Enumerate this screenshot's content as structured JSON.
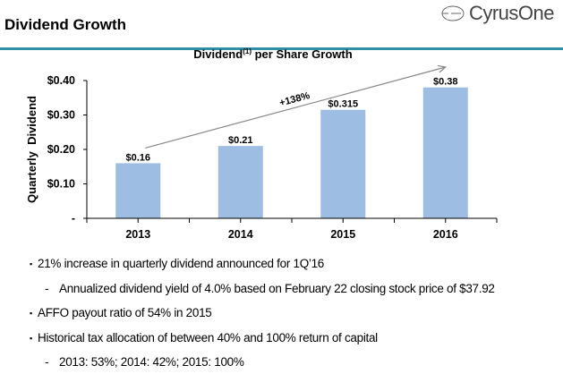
{
  "header": {
    "title": "Dividend Growth",
    "logo_text": "CyrusOne",
    "rule_color": "#2e8fa6"
  },
  "chart_data": {
    "type": "bar",
    "title": "Dividend",
    "title_superscript": "(1)",
    "title_rest": " per Share Growth",
    "ylabel": "Quarterly  Dividend",
    "xlabel": "",
    "categories": [
      "2013",
      "2014",
      "2015",
      "2016"
    ],
    "values": [
      0.16,
      0.21,
      0.315,
      0.38
    ],
    "data_labels": [
      "$0.16",
      "$0.21",
      "$0.315",
      "$0.38"
    ],
    "ylim": [
      0,
      0.4
    ],
    "yticks": [
      0,
      0.1,
      0.2,
      0.3,
      0.4
    ],
    "ytick_labels": [
      "-",
      "$0.10",
      "$0.20",
      "$0.30",
      "$0.40"
    ],
    "bar_color": "#9dbde3",
    "grid": false,
    "annotation": {
      "text": "+138%",
      "type": "arrow",
      "from": "2013",
      "to": "2016"
    }
  },
  "bullets": [
    {
      "level": 1,
      "marker": "▪",
      "text": "21% increase in quarterly dividend announced for 1Q’16"
    },
    {
      "level": 2,
      "marker": "-",
      "text": "Annualized dividend yield of 4.0% based on February 22 closing stock price of $37.92"
    },
    {
      "level": 1,
      "marker": "▪",
      "text": "AFFO payout ratio of 54% in 2015"
    },
    {
      "level": 1,
      "marker": "▪",
      "text": "Historical tax allocation of between 40% and 100% return of capital"
    },
    {
      "level": 2,
      "marker": "-",
      "text": "2013: 53%; 2014: 42%; 2015: 100%"
    }
  ]
}
